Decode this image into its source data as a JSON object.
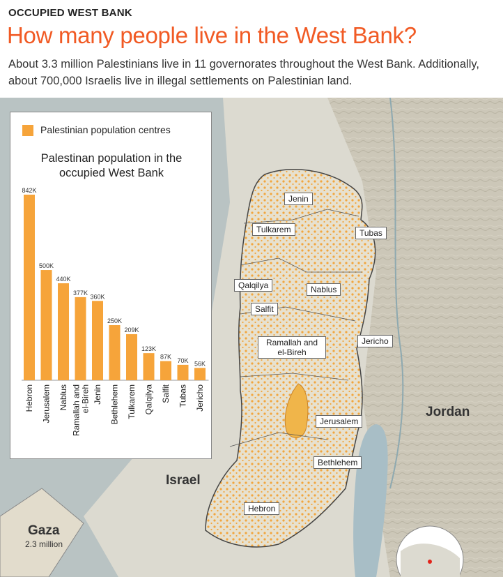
{
  "kicker": "OCCUPIED WEST BANK",
  "headline": "How many people live in the West Bank?",
  "subtitle": "About 3.3 million Palestinians live in 11 governorates throughout the West Bank. Additionally, about 700,000 Israelis live in illegal settlements on Palestinian land.",
  "legend": {
    "label": "Palestinian population centres",
    "color": "#f6a43a"
  },
  "map_labels": {
    "jenin": "Jenin",
    "tulkarem": "Tulkarem",
    "tubas": "Tubas",
    "qalqilya": "Qalqilya",
    "nablus": "Nablus",
    "salfit": "Salfit",
    "ramallah": "Ramallah and el-Bireh",
    "jericho": "Jericho",
    "jerusalem": "Jerusalem",
    "bethlehem": "Bethlehem",
    "hebron": "Hebron",
    "jordan": "Jordan",
    "israel": "Israel",
    "gaza": "Gaza",
    "gaza_pop": "2.3 million"
  },
  "chart_data": {
    "type": "bar",
    "title": "Palestinan population in the occupied West Bank",
    "categories": [
      "Hebron",
      "Jerusalem",
      "Nablus",
      "Ramallah and el-Bireh",
      "Jenin",
      "Bethlehem",
      "Tulkarem",
      "Qalqilya",
      "Salfit",
      "Tubas",
      "Jericho"
    ],
    "values": [
      842000,
      500000,
      440000,
      377000,
      360000,
      250000,
      209000,
      123000,
      87000,
      70000,
      56000
    ],
    "value_labels": [
      "842K",
      "500K",
      "440K",
      "377K",
      "360K",
      "250K",
      "209K",
      "123K",
      "87K",
      "70K",
      "56K"
    ],
    "ylim": [
      0,
      842000
    ],
    "bar_color": "#f6a43a",
    "grid": false
  }
}
